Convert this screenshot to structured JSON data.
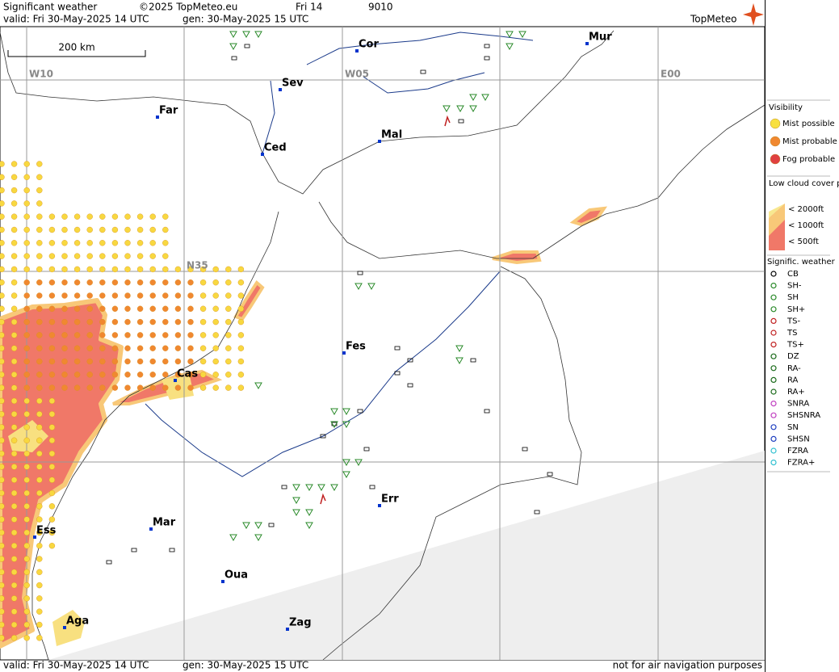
{
  "header": {
    "title": "Significant weather",
    "copyright": "©2025 TopMeteo.eu",
    "day": "Fri 14",
    "code": "9010",
    "valid": "valid:  Fri  30-May-2025  14 UTC",
    "gen": "gen: 30-May-2025 15 UTC",
    "brand": "TopMeteo"
  },
  "map": {
    "scale_label": "200 km",
    "grid_labels": [
      "W10",
      "W05",
      "E00",
      "N35"
    ],
    "cities": [
      "Cor",
      "Mur",
      "Sev",
      "Far",
      "Mal",
      "Ced",
      "Fes",
      "Cas",
      "Err",
      "Mar",
      "Ess",
      "Oua",
      "Aga",
      "Zag"
    ]
  },
  "legend": {
    "visibility_title": "Visibility",
    "visibility": [
      "Mist possible",
      "Mist probable",
      "Fog probable"
    ],
    "cloud_title": "Low cloud cover probable",
    "cloud": [
      "< 2000ft",
      "< 1000ft",
      "<  500ft"
    ],
    "weather_title": "Signific. weather",
    "weather": [
      "CB",
      "SH-",
      "SH",
      "SH+",
      "TS-",
      "TS",
      "TS+",
      "DZ",
      "RA-",
      "RA",
      "RA+",
      "SNRA",
      "SHSNRA",
      "SN",
      "SHSN",
      "FZRA",
      "FZRA+"
    ]
  },
  "footer": {
    "valid": "valid:  Fri  30-May-2025  14 UTC",
    "gen": "gen: 30-May-2025 15 UTC",
    "note": "not for air navigation purposes"
  }
}
